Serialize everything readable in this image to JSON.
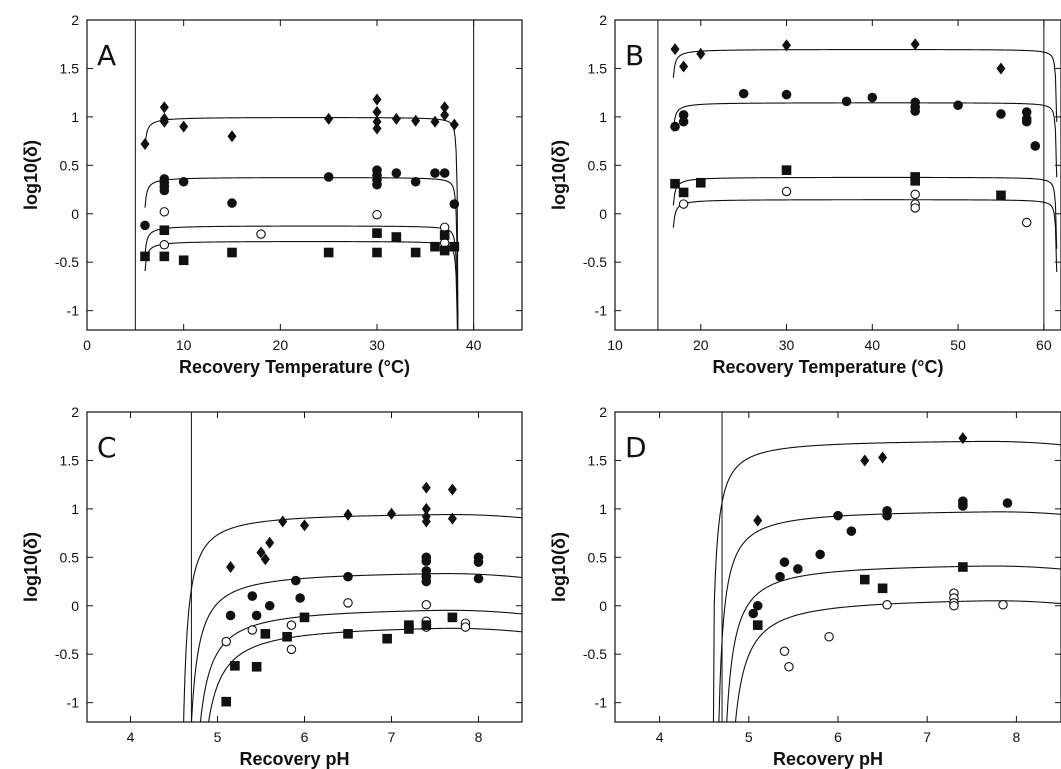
{
  "chart_data": [
    {
      "panel": "A",
      "type": "scatter",
      "xlabel": "Recovery Temperature (°C)",
      "ylabel": "log10(δ)",
      "xlim": [
        0,
        45
      ],
      "ylim": [
        -1.2,
        2
      ],
      "xticks": [
        0,
        10,
        20,
        30,
        40
      ],
      "yticks": [
        -1,
        -0.5,
        0,
        0.5,
        1,
        1.5,
        2
      ],
      "vlines": [
        5,
        40
      ],
      "marker_colors": {
        "diamond": "#111111",
        "circle": "#111111",
        "open-circle": "#ffffff",
        "square": "#111111"
      },
      "series": [
        {
          "marker": "diamond",
          "points": [
            [
              6,
              0.72
            ],
            [
              8,
              1.1
            ],
            [
              8,
              0.98
            ],
            [
              8,
              0.95
            ],
            [
              10,
              0.9
            ],
            [
              15,
              0.8
            ],
            [
              25,
              0.98
            ],
            [
              30,
              1.18
            ],
            [
              30,
              1.05
            ],
            [
              30,
              0.95
            ],
            [
              30,
              0.88
            ],
            [
              32,
              0.98
            ],
            [
              34,
              0.96
            ],
            [
              36,
              0.95
            ],
            [
              37,
              1.1
            ],
            [
              37,
              1.02
            ],
            [
              38,
              0.92
            ]
          ],
          "curve": {
            "xmin": 6,
            "xmax": 38.4,
            "plateau": 1.0,
            "tmin": 5.7,
            "tmax": 38.4,
            "bot": 0.28
          }
        },
        {
          "marker": "circle",
          "points": [
            [
              6,
              -0.12
            ],
            [
              8,
              0.36
            ],
            [
              8,
              0.32
            ],
            [
              8,
              0.28
            ],
            [
              8,
              0.24
            ],
            [
              10,
              0.33
            ],
            [
              15,
              0.11
            ],
            [
              25,
              0.38
            ],
            [
              30,
              0.45
            ],
            [
              30,
              0.4
            ],
            [
              30,
              0.35
            ],
            [
              30,
              0.3
            ],
            [
              32,
              0.42
            ],
            [
              34,
              0.33
            ],
            [
              36,
              0.42
            ],
            [
              37,
              0.42
            ],
            [
              38,
              0.1
            ]
          ],
          "curve": {
            "xmin": 6,
            "xmax": 38.4,
            "plateau": 0.38,
            "tmin": 5.7,
            "tmax": 38.4,
            "bot": -0.45
          }
        },
        {
          "marker": "open-circle",
          "points": [
            [
              8,
              0.02
            ],
            [
              8,
              -0.32
            ],
            [
              18,
              -0.21
            ],
            [
              30,
              -0.01
            ],
            [
              37,
              -0.14
            ],
            [
              37,
              -0.3
            ]
          ],
          "curve": {
            "xmin": 6,
            "xmax": 38.4,
            "plateau": -0.12,
            "tmin": 5.7,
            "tmax": 38.4,
            "bot": -0.8
          }
        },
        {
          "marker": "square",
          "points": [
            [
              6,
              -0.44
            ],
            [
              8,
              -0.44
            ],
            [
              8,
              -0.17
            ],
            [
              10,
              -0.48
            ],
            [
              15,
              -0.4
            ],
            [
              25,
              -0.4
            ],
            [
              30,
              -0.4
            ],
            [
              30,
              -0.2
            ],
            [
              32,
              -0.24
            ],
            [
              34,
              -0.4
            ],
            [
              36,
              -0.34
            ],
            [
              37,
              -0.38
            ],
            [
              37,
              -0.22
            ],
            [
              38,
              -0.34
            ]
          ],
          "curve": {
            "xmin": 6,
            "xmax": 38.4,
            "plateau": -0.28,
            "tmin": 5.7,
            "tmax": 38.4,
            "bot": -1.05
          }
        }
      ]
    },
    {
      "panel": "B",
      "type": "scatter",
      "xlabel": "Recovery Temperature (°C)",
      "ylabel": "log10(δ)",
      "xlim": [
        10,
        62
      ],
      "ylim": [
        -1.2,
        2
      ],
      "xticks": [
        10,
        20,
        30,
        40,
        50,
        60
      ],
      "yticks": [
        -1,
        -0.5,
        0,
        0.5,
        1,
        1.5,
        2
      ],
      "vlines": [
        15,
        60
      ],
      "series": [
        {
          "marker": "diamond",
          "points": [
            [
              17,
              1.7
            ],
            [
              18,
              1.52
            ],
            [
              20,
              1.65
            ],
            [
              30,
              1.74
            ],
            [
              45,
              1.75
            ],
            [
              55,
              1.5
            ]
          ],
          "curve": {
            "xmin": 16.8,
            "xmax": 61.5,
            "plateau": 1.7,
            "tmin": 16.5,
            "tmax": 61.6,
            "bot": 1.1
          }
        },
        {
          "marker": "circle",
          "points": [
            [
              17,
              0.9
            ],
            [
              18,
              0.95
            ],
            [
              18,
              1.02
            ],
            [
              25,
              1.24
            ],
            [
              30,
              1.23
            ],
            [
              37,
              1.16
            ],
            [
              40,
              1.2
            ],
            [
              45,
              1.15
            ],
            [
              45,
              1.1
            ],
            [
              45,
              1.06
            ],
            [
              50,
              1.12
            ],
            [
              55,
              1.03
            ],
            [
              58,
              1.05
            ],
            [
              58,
              0.98
            ],
            [
              58,
              0.95
            ],
            [
              59,
              0.7
            ]
          ],
          "curve": {
            "xmin": 16.8,
            "xmax": 61.5,
            "plateau": 1.15,
            "tmin": 16.5,
            "tmax": 61.6,
            "bot": 0.5
          }
        },
        {
          "marker": "square",
          "points": [
            [
              17,
              0.31
            ],
            [
              18,
              0.22
            ],
            [
              20,
              0.32
            ],
            [
              30,
              0.45
            ],
            [
              45,
              0.38
            ],
            [
              45,
              0.34
            ],
            [
              55,
              0.19
            ]
          ],
          "curve": {
            "xmin": 16.8,
            "xmax": 61.5,
            "plateau": 0.38,
            "tmin": 16.5,
            "tmax": 61.6,
            "bot": -0.2
          }
        },
        {
          "marker": "open-circle",
          "points": [
            [
              18,
              0.1
            ],
            [
              30,
              0.23
            ],
            [
              45,
              0.2
            ],
            [
              45,
              0.1
            ],
            [
              45,
              0.06
            ],
            [
              58,
              -0.09
            ]
          ],
          "curve": {
            "xmin": 16.8,
            "xmax": 61.5,
            "plateau": 0.15,
            "tmin": 16.5,
            "tmax": 61.6,
            "bot": -0.45
          }
        }
      ]
    },
    {
      "panel": "C",
      "type": "scatter",
      "xlabel": "Recovery pH",
      "ylabel": "log10(δ)",
      "xlim": [
        3.5,
        8.5
      ],
      "ylim": [
        -1.2,
        2
      ],
      "xticks": [
        4,
        5,
        6,
        7,
        8
      ],
      "yticks": [
        -1,
        -0.5,
        0,
        0.5,
        1,
        1.5,
        2
      ],
      "vlines": [
        4.7
      ],
      "series": [
        {
          "marker": "diamond",
          "points": [
            [
              5.15,
              0.4
            ],
            [
              5.5,
              0.55
            ],
            [
              5.55,
              0.48
            ],
            [
              5.6,
              0.65
            ],
            [
              5.75,
              0.87
            ],
            [
              6.0,
              0.83
            ],
            [
              6.5,
              0.94
            ],
            [
              7.0,
              0.95
            ],
            [
              7.4,
              1.22
            ],
            [
              7.4,
              1.0
            ],
            [
              7.4,
              0.92
            ],
            [
              7.4,
              0.87
            ],
            [
              7.7,
              1.2
            ],
            [
              7.7,
              0.9
            ]
          ],
          "curve": {
            "xmin": 4.6,
            "xmax": 8.5,
            "plateau": 0.97,
            "ph0": 4.6,
            "ph_peak": 7.6,
            "k": 0.55
          }
        },
        {
          "marker": "circle",
          "points": [
            [
              5.15,
              -0.1
            ],
            [
              5.4,
              0.1
            ],
            [
              5.45,
              -0.1
            ],
            [
              5.6,
              0.0
            ],
            [
              5.9,
              0.26
            ],
            [
              5.95,
              0.08
            ],
            [
              6.5,
              0.3
            ],
            [
              7.4,
              0.5
            ],
            [
              7.4,
              0.46
            ],
            [
              7.4,
              0.36
            ],
            [
              7.4,
              0.3
            ],
            [
              7.4,
              0.25
            ],
            [
              8.0,
              0.5
            ],
            [
              8.0,
              0.45
            ],
            [
              8.0,
              0.28
            ]
          ],
          "curve": {
            "xmin": 4.65,
            "xmax": 8.5,
            "plateau": 0.37,
            "ph0": 4.65,
            "ph_peak": 7.5,
            "k": 0.7
          }
        },
        {
          "marker": "open-circle",
          "points": [
            [
              5.1,
              -0.37
            ],
            [
              5.4,
              -0.25
            ],
            [
              5.85,
              -0.2
            ],
            [
              5.85,
              -0.45
            ],
            [
              6.5,
              0.03
            ],
            [
              7.4,
              0.01
            ],
            [
              7.4,
              -0.16
            ],
            [
              7.4,
              -0.22
            ],
            [
              7.85,
              -0.18
            ],
            [
              7.85,
              -0.22
            ]
          ],
          "curve": {
            "xmin": 4.7,
            "xmax": 8.5,
            "plateau": 0.0,
            "ph0": 4.7,
            "ph_peak": 7.5,
            "k": 0.85
          }
        },
        {
          "marker": "square",
          "points": [
            [
              5.1,
              -0.99
            ],
            [
              5.2,
              -0.62
            ],
            [
              5.45,
              -0.63
            ],
            [
              5.55,
              -0.29
            ],
            [
              5.8,
              -0.32
            ],
            [
              6.0,
              -0.12
            ],
            [
              6.5,
              -0.29
            ],
            [
              6.95,
              -0.34
            ],
            [
              7.2,
              -0.24
            ],
            [
              7.2,
              -0.2
            ],
            [
              7.4,
              -0.2
            ],
            [
              7.7,
              -0.12
            ]
          ],
          "curve": {
            "xmin": 4.75,
            "xmax": 8.5,
            "plateau": -0.18,
            "ph0": 4.75,
            "ph_peak": 7.5,
            "k": 0.95
          }
        }
      ]
    },
    {
      "panel": "D",
      "type": "scatter",
      "xlabel": "Recovery pH",
      "ylabel": "log10(δ)",
      "xlim": [
        3.5,
        8.5
      ],
      "ylim": [
        -1.2,
        2
      ],
      "xticks": [
        4,
        5,
        6,
        7,
        8
      ],
      "yticks": [
        -1,
        -0.5,
        0,
        0.5,
        1,
        1.5,
        2
      ],
      "vlines": [
        4.7
      ],
      "series": [
        {
          "marker": "diamond",
          "points": [
            [
              5.1,
              0.88
            ],
            [
              6.3,
              1.5
            ],
            [
              6.5,
              1.53
            ],
            [
              7.4,
              1.73
            ]
          ],
          "curve": {
            "xmin": 4.6,
            "xmax": 8.5,
            "plateau": 1.72,
            "ph0": 4.6,
            "ph_peak": 7.6,
            "k": 0.45
          }
        },
        {
          "marker": "circle",
          "points": [
            [
              5.05,
              -0.08
            ],
            [
              5.1,
              0.0
            ],
            [
              5.35,
              0.3
            ],
            [
              5.4,
              0.45
            ],
            [
              5.55,
              0.38
            ],
            [
              5.8,
              0.53
            ],
            [
              6.0,
              0.93
            ],
            [
              6.15,
              0.77
            ],
            [
              6.55,
              0.98
            ],
            [
              6.55,
              0.93
            ],
            [
              7.4,
              1.08
            ],
            [
              7.4,
              1.05
            ],
            [
              7.4,
              1.03
            ],
            [
              7.9,
              1.06
            ]
          ],
          "curve": {
            "xmin": 4.65,
            "xmax": 8.5,
            "plateau": 1.0,
            "ph0": 4.65,
            "ph_peak": 7.7,
            "k": 0.6
          }
        },
        {
          "marker": "square",
          "points": [
            [
              5.1,
              -0.2
            ],
            [
              6.3,
              0.27
            ],
            [
              6.5,
              0.18
            ],
            [
              7.4,
              0.4
            ]
          ],
          "curve": {
            "xmin": 4.7,
            "xmax": 8.5,
            "plateau": 0.45,
            "ph0": 4.7,
            "ph_peak": 7.6,
            "k": 0.75
          }
        },
        {
          "marker": "open-circle",
          "points": [
            [
              5.4,
              -0.47
            ],
            [
              5.45,
              -0.63
            ],
            [
              5.9,
              -0.32
            ],
            [
              6.55,
              0.01
            ],
            [
              7.3,
              0.13
            ],
            [
              7.3,
              0.08
            ],
            [
              7.3,
              0.03
            ],
            [
              7.3,
              0.0
            ],
            [
              7.85,
              0.01
            ]
          ],
          "curve": {
            "xmin": 4.75,
            "xmax": 8.5,
            "plateau": 0.1,
            "ph0": 4.75,
            "ph_peak": 7.6,
            "k": 0.9
          }
        }
      ]
    }
  ]
}
